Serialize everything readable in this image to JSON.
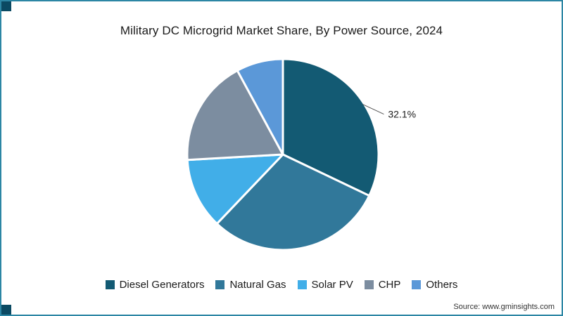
{
  "title": "Military DC Microgrid Market Share, By Power Source, 2024",
  "source": "Source: www.gminsights.com",
  "chart_data": {
    "type": "pie",
    "title": "Military DC Microgrid Market Share, By Power Source, 2024",
    "categories": [
      "Diesel Generators",
      "Natural Gas",
      "Solar PV",
      "CHP",
      "Others"
    ],
    "values": [
      32.1,
      30.0,
      12.0,
      18.0,
      7.9
    ],
    "colors": [
      "#135a73",
      "#31789a",
      "#41aee8",
      "#7c8da0",
      "#5b98d8"
    ],
    "start_angle_deg": 0,
    "clockwise": true,
    "slice_gap_color": "#ffffff",
    "data_labels": [
      {
        "slice_index": 0,
        "text": "32.1%"
      }
    ],
    "legend_position": "bottom",
    "accent_border_color": "#2c86a4",
    "corner_decoration_color": "#0b4a63"
  }
}
